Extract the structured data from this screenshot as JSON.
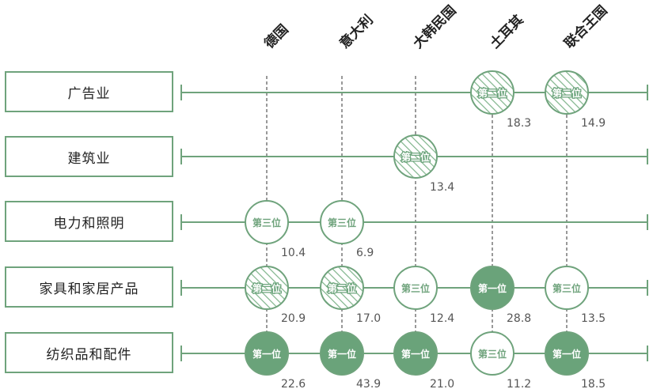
{
  "colors": {
    "green": "#6fa37c",
    "green_fill": "#6aa37a",
    "hatch": "#7fb48b",
    "text": "#222222",
    "value_text": "#555555"
  },
  "chart_data": {
    "type": "table",
    "countries": [
      "德国",
      "意大利",
      "大韩民国",
      "土耳其",
      "联合王国"
    ],
    "industries": [
      "广告业",
      "建筑业",
      "电力和照明",
      "家具和家居产品",
      "纺织品和配件"
    ],
    "rank_labels": {
      "1": "第一位",
      "2": "第二位",
      "3": "第三位"
    },
    "legend_styles": {
      "1": "solid fill",
      "2": "hatched",
      "3": "outline"
    },
    "cells": [
      {
        "industry": "广告业",
        "country": "土耳其",
        "rank": 2,
        "value": "18.3"
      },
      {
        "industry": "广告业",
        "country": "联合王国",
        "rank": 2,
        "value": "14.9"
      },
      {
        "industry": "建筑业",
        "country": "大韩民国",
        "rank": 2,
        "value": "13.4"
      },
      {
        "industry": "电力和照明",
        "country": "德国",
        "rank": 3,
        "value": "10.4"
      },
      {
        "industry": "电力和照明",
        "country": "意大利",
        "rank": 3,
        "value": "6.9"
      },
      {
        "industry": "家具和家居产品",
        "country": "德国",
        "rank": 2,
        "value": "20.9"
      },
      {
        "industry": "家具和家居产品",
        "country": "意大利",
        "rank": 2,
        "value": "17.0"
      },
      {
        "industry": "家具和家居产品",
        "country": "大韩民国",
        "rank": 3,
        "value": "12.4"
      },
      {
        "industry": "家具和家居产品",
        "country": "土耳其",
        "rank": 1,
        "value": "28.8"
      },
      {
        "industry": "家具和家居产品",
        "country": "联合王国",
        "rank": 3,
        "value": "13.5"
      },
      {
        "industry": "纺织品和配件",
        "country": "德国",
        "rank": 1,
        "value": "22.6"
      },
      {
        "industry": "纺织品和配件",
        "country": "意大利",
        "rank": 1,
        "value": "43.9"
      },
      {
        "industry": "纺织品和配件",
        "country": "大韩民国",
        "rank": 1,
        "value": "21.0"
      },
      {
        "industry": "纺织品和配件",
        "country": "土耳其",
        "rank": 3,
        "value": "11.2"
      },
      {
        "industry": "纺织品和配件",
        "country": "联合王国",
        "rank": 1,
        "value": "18.5"
      }
    ]
  }
}
